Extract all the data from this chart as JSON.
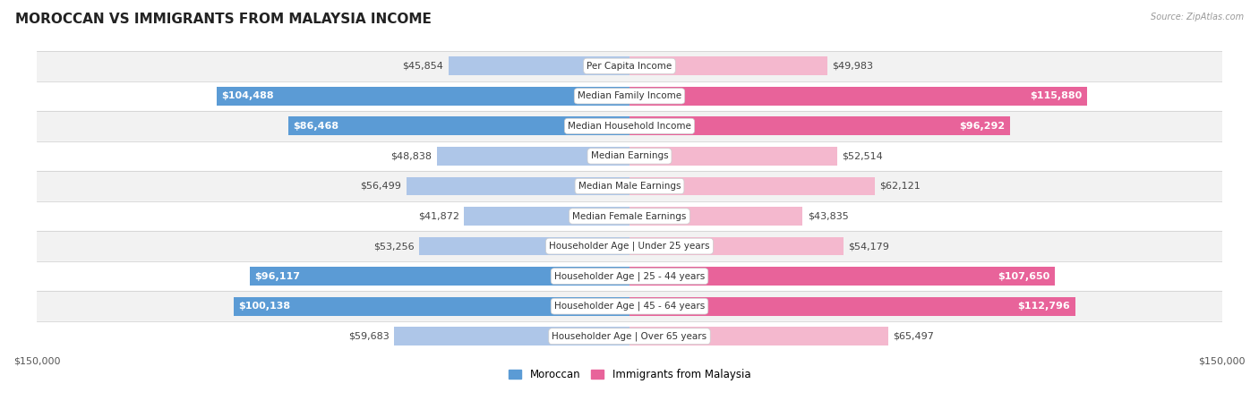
{
  "title": "MOROCCAN VS IMMIGRANTS FROM MALAYSIA INCOME",
  "source": "Source: ZipAtlas.com",
  "categories": [
    "Per Capita Income",
    "Median Family Income",
    "Median Household Income",
    "Median Earnings",
    "Median Male Earnings",
    "Median Female Earnings",
    "Householder Age | Under 25 years",
    "Householder Age | 25 - 44 years",
    "Householder Age | 45 - 64 years",
    "Householder Age | Over 65 years"
  ],
  "moroccan_values": [
    45854,
    104488,
    86468,
    48838,
    56499,
    41872,
    53256,
    96117,
    100138,
    59683
  ],
  "malaysia_values": [
    49983,
    115880,
    96292,
    52514,
    62121,
    43835,
    54179,
    107650,
    112796,
    65497
  ],
  "moroccan_labels": [
    "$45,854",
    "$104,488",
    "$86,468",
    "$48,838",
    "$56,499",
    "$41,872",
    "$53,256",
    "$96,117",
    "$100,138",
    "$59,683"
  ],
  "malaysia_labels": [
    "$49,983",
    "$115,880",
    "$96,292",
    "$52,514",
    "$62,121",
    "$43,835",
    "$54,179",
    "$107,650",
    "$112,796",
    "$65,497"
  ],
  "moroccan_color_light": "#aec6e8",
  "moroccan_color_dark": "#5b9bd5",
  "malaysia_color_light": "#f4b8ce",
  "malaysia_color_dark": "#e8639a",
  "max_value": 150000,
  "bar_height": 0.62,
  "row_bg_colors": [
    "#f2f2f2",
    "#ffffff",
    "#f2f2f2",
    "#ffffff",
    "#f2f2f2",
    "#ffffff",
    "#f2f2f2",
    "#ffffff",
    "#f2f2f2",
    "#ffffff"
  ],
  "legend_moroccan": "Moroccan",
  "legend_malaysia": "Immigrants from Malaysia",
  "title_fontsize": 11,
  "label_fontsize": 8,
  "category_fontsize": 7.5,
  "axis_label_fontsize": 8,
  "dark_threshold": 0.55
}
